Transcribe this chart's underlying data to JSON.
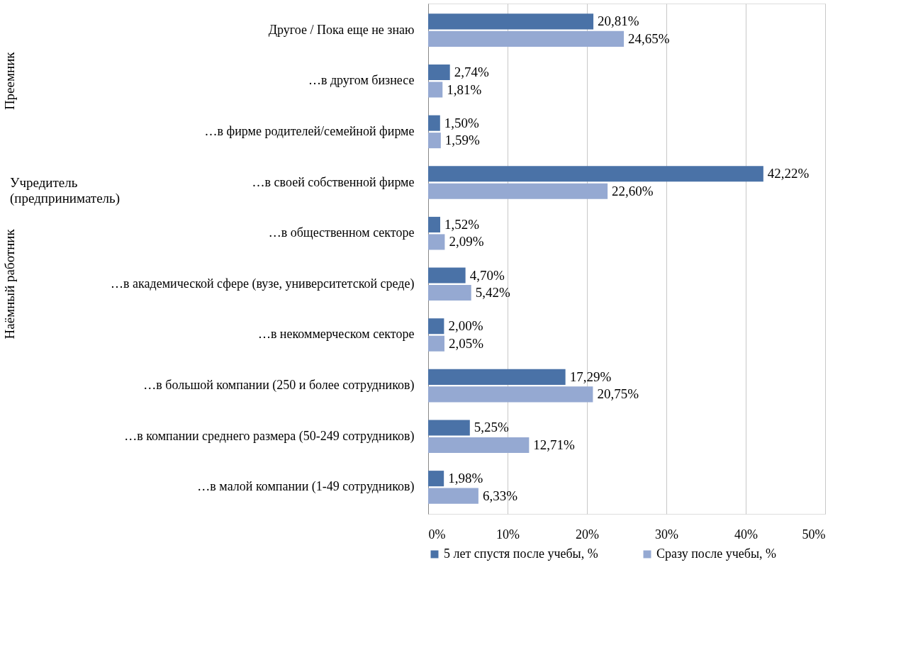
{
  "chart_data": {
    "type": "bar",
    "orientation": "horizontal",
    "categories": [
      "Другое / Пока еще не знаю",
      "…в другом бизнесе",
      "…в фирме родителей/семейной фирме",
      "…в своей собственной фирме",
      "…в общественном секторе",
      "…в академической сфере (вузе, университетской среде)",
      "…в некоммерческом секторе",
      "…в большой компании (250 и более сотрудников)",
      "…в компании среднего размера (50-249 сотрудников)",
      "…в малой компании (1-49 сотрудников)"
    ],
    "series": [
      {
        "name": "5 лет спустя после учебы, %",
        "color": "#4a72a7",
        "values": [
          20.81,
          2.74,
          1.5,
          42.22,
          1.52,
          4.7,
          2.0,
          17.29,
          5.25,
          1.98
        ],
        "value_labels": [
          "20,81%",
          "2,74%",
          "1,50%",
          "42,22%",
          "1,52%",
          "4,70%",
          "2,00%",
          "17,29%",
          "5,25%",
          "1,98%"
        ]
      },
      {
        "name": "Сразу после учебы, %",
        "color": "#95a9d2",
        "values": [
          24.65,
          1.81,
          1.59,
          22.6,
          2.09,
          5.42,
          2.05,
          20.75,
          12.71,
          6.33
        ],
        "value_labels": [
          "24,65%",
          "1,81%",
          "1,59%",
          "22,60%",
          "2,09%",
          "5,42%",
          "2,05%",
          "20,75%",
          "12,71%",
          "6,33%"
        ]
      }
    ],
    "xlim": [
      0,
      50
    ],
    "xticks": [
      {
        "value": 0,
        "label": "0%"
      },
      {
        "value": 10,
        "label": "10%"
      },
      {
        "value": 20,
        "label": "20%"
      },
      {
        "value": 30,
        "label": "30%"
      },
      {
        "value": 40,
        "label": "40%"
      },
      {
        "value": 50,
        "label": "50%"
      }
    ],
    "grid": "x",
    "legend": "bottom",
    "annotations": [
      "Преемник",
      "Учредитель (предприниматель)",
      "Наёмный работник"
    ]
  }
}
